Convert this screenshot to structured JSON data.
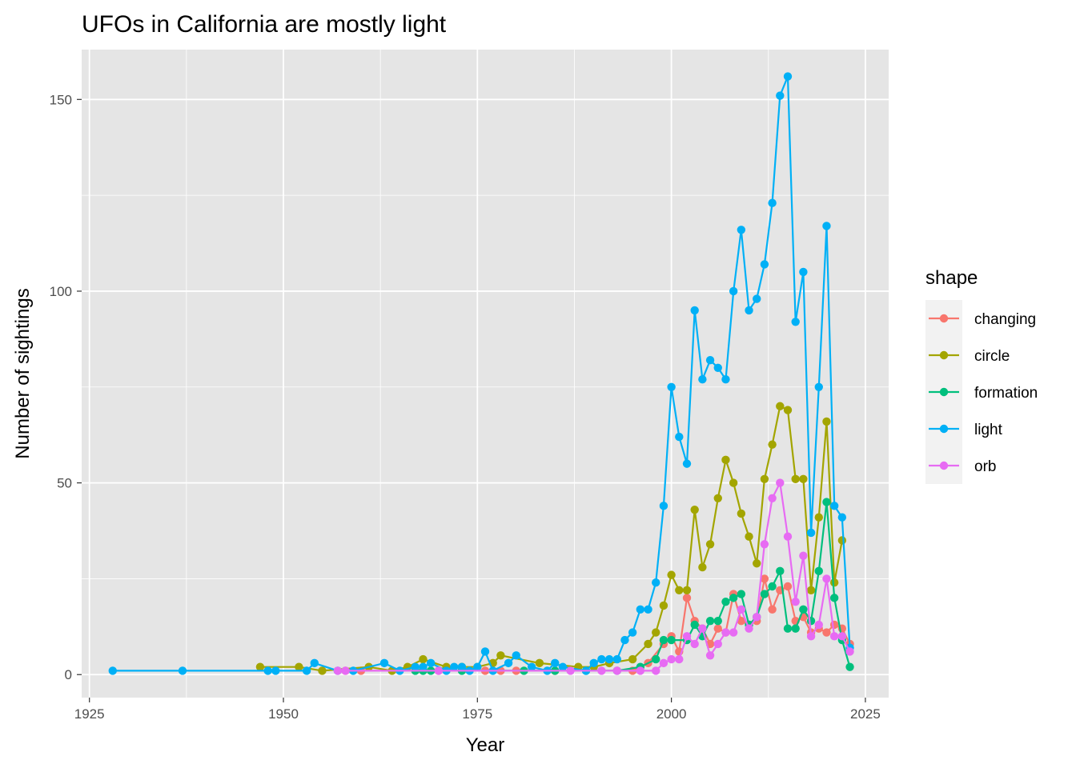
{
  "chart_data": {
    "type": "line",
    "title": "UFOs in California are mostly light",
    "xlabel": "Year",
    "ylabel": "Number of sightings",
    "xlim": [
      1924,
      2028
    ],
    "ylim": [
      -6,
      163
    ],
    "x_ticks": [
      1925,
      1950,
      1975,
      2000,
      2025
    ],
    "y_ticks": [
      0,
      50,
      100,
      150
    ],
    "grid": true,
    "points": true,
    "background": "#e5e5e5",
    "legend": {
      "title": "shape",
      "position": "right"
    },
    "series": [
      {
        "name": "changing",
        "color": "#f8766d",
        "x": [
          1958,
          1960,
          1970,
          1976,
          1978,
          1980,
          1985,
          1995,
          1997,
          1999,
          2000,
          2001,
          2002,
          2003,
          2004,
          2005,
          2006,
          2007,
          2008,
          2009,
          2010,
          2011,
          2012,
          2013,
          2014,
          2015,
          2016,
          2017,
          2018,
          2019,
          2020,
          2021,
          2022,
          2023
        ],
        "y": [
          1,
          1,
          1,
          1,
          1,
          1,
          1,
          1,
          3,
          8,
          10,
          6,
          20,
          14,
          12,
          8,
          12,
          11,
          21,
          14,
          13,
          14,
          25,
          17,
          22,
          23,
          14,
          15,
          11,
          12,
          11,
          13,
          12,
          8
        ]
      },
      {
        "name": "circle",
        "color": "#a3a500",
        "x": [
          1947,
          1952,
          1955,
          1961,
          1964,
          1966,
          1968,
          1971,
          1973,
          1975,
          1977,
          1978,
          1983,
          1988,
          1990,
          1992,
          1995,
          1997,
          1998,
          1999,
          2000,
          2001,
          2002,
          2003,
          2004,
          2005,
          2006,
          2007,
          2008,
          2009,
          2010,
          2011,
          2012,
          2013,
          2014,
          2015,
          2016,
          2017,
          2018,
          2019,
          2020,
          2021,
          2022
        ],
        "y": [
          2,
          2,
          1,
          2,
          1,
          2,
          4,
          2,
          2,
          2,
          3,
          5,
          3,
          2,
          2,
          3,
          4,
          8,
          11,
          18,
          26,
          22,
          22,
          43,
          28,
          34,
          46,
          56,
          50,
          42,
          36,
          29,
          51,
          60,
          70,
          69,
          51,
          51,
          22,
          41,
          66,
          24,
          35
        ]
      },
      {
        "name": "formation",
        "color": "#00bf7d",
        "x": [
          1967,
          1968,
          1969,
          1973,
          1981,
          1985,
          1989,
          1993,
          1996,
          1998,
          1999,
          2000,
          2002,
          2003,
          2004,
          2005,
          2006,
          2007,
          2008,
          2009,
          2010,
          2011,
          2012,
          2013,
          2014,
          2015,
          2016,
          2017,
          2018,
          2019,
          2020,
          2021,
          2022,
          2023
        ],
        "y": [
          1,
          1,
          1,
          1,
          1,
          1,
          1,
          1,
          2,
          4,
          9,
          9,
          9,
          13,
          10,
          14,
          14,
          19,
          20,
          21,
          13,
          15,
          21,
          23,
          27,
          12,
          12,
          17,
          14,
          27,
          45,
          20,
          9,
          2
        ]
      },
      {
        "name": "light",
        "color": "#00b0f6",
        "x": [
          1928,
          1937,
          1948,
          1949,
          1953,
          1954,
          1957,
          1959,
          1963,
          1965,
          1967,
          1968,
          1969,
          1971,
          1972,
          1973,
          1974,
          1975,
          1976,
          1977,
          1979,
          1980,
          1982,
          1984,
          1985,
          1986,
          1989,
          1990,
          1991,
          1992,
          1993,
          1994,
          1995,
          1996,
          1997,
          1998,
          1999,
          2000,
          2001,
          2002,
          2003,
          2004,
          2005,
          2006,
          2007,
          2008,
          2009,
          2010,
          2011,
          2012,
          2013,
          2014,
          2015,
          2016,
          2017,
          2018,
          2019,
          2020,
          2021,
          2022,
          2023
        ],
        "y": [
          1,
          1,
          1,
          1,
          1,
          3,
          1,
          1,
          3,
          1,
          2,
          2,
          3,
          1,
          2,
          2,
          1,
          2,
          6,
          1,
          3,
          5,
          2,
          1,
          3,
          2,
          1,
          3,
          4,
          4,
          4,
          9,
          11,
          17,
          17,
          24,
          44,
          75,
          62,
          55,
          95,
          77,
          82,
          80,
          77,
          100,
          116,
          95,
          98,
          107,
          123,
          151,
          156,
          92,
          105,
          37,
          75,
          117,
          44,
          41,
          7
        ]
      },
      {
        "name": "orb",
        "color": "#e76bf3",
        "x": [
          1957,
          1958,
          1970,
          1987,
          1991,
          1993,
          1996,
          1998,
          1999,
          2000,
          2001,
          2002,
          2003,
          2004,
          2005,
          2006,
          2007,
          2008,
          2009,
          2010,
          2011,
          2012,
          2013,
          2014,
          2015,
          2016,
          2017,
          2018,
          2019,
          2020,
          2021,
          2022,
          2023
        ],
        "y": [
          1,
          1,
          1,
          1,
          1,
          1,
          1,
          1,
          3,
          4,
          4,
          10,
          8,
          12,
          5,
          8,
          11,
          11,
          17,
          12,
          15,
          34,
          46,
          50,
          36,
          19,
          31,
          10,
          13,
          25,
          10,
          10,
          6
        ]
      }
    ]
  }
}
